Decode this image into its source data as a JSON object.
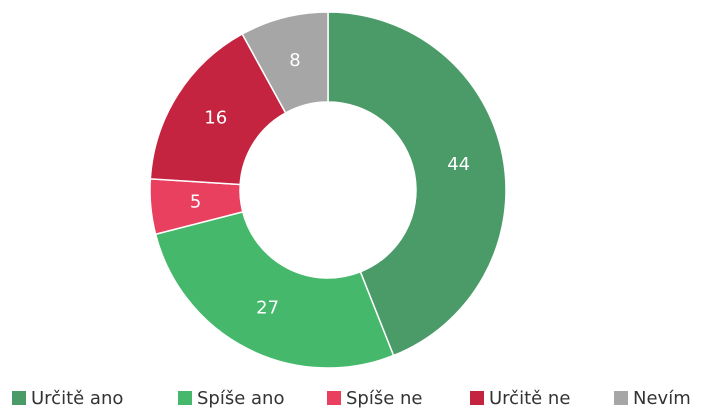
{
  "chart_data": {
    "type": "donut",
    "categories": [
      "Určitě ano",
      "Spíše ano",
      "Spíše ne",
      "Určitě ne",
      "Nevím"
    ],
    "values": [
      44,
      27,
      5,
      16,
      8
    ],
    "colors": [
      "#4a9b68",
      "#45b86b",
      "#e8405e",
      "#c4243f",
      "#a6a6a6"
    ],
    "legend": "bottom"
  }
}
